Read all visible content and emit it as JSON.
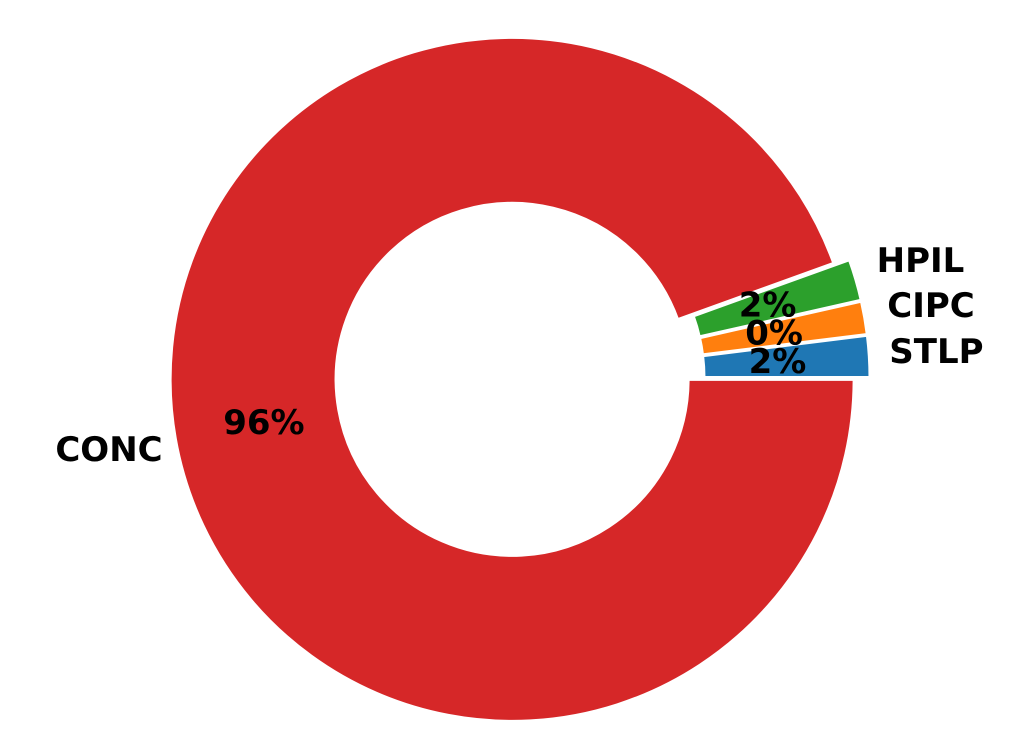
{
  "chart_data": {
    "type": "pie",
    "donut": true,
    "categories": [
      "STLP",
      "CIPC",
      "HPIL",
      "CONC"
    ],
    "values": [
      2,
      0,
      2,
      96
    ],
    "value_labels": [
      "2%",
      "0%",
      "2%",
      "96%"
    ],
    "colors": [
      "#1f77b4",
      "#ff7f0e",
      "#2ca02c",
      "#d62728"
    ],
    "start_angle_deg": 0,
    "direction": "counterclockwise",
    "exploded": true,
    "title": "",
    "legend": "none"
  }
}
